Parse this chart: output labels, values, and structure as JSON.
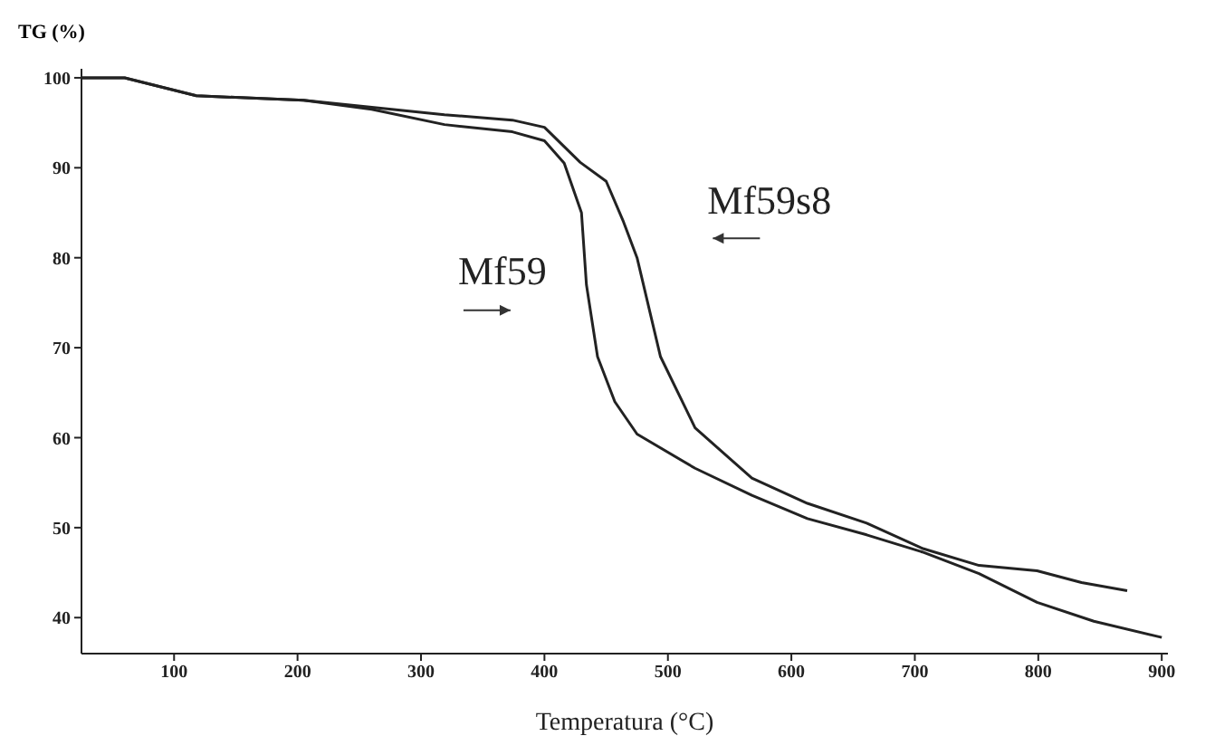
{
  "chart_data": {
    "type": "line",
    "xlabel": "Temperatura (°C)",
    "ylabel": "TG (%)",
    "xlim": [
      25,
      905
    ],
    "xticks": [
      100,
      200,
      300,
      400,
      500,
      600,
      700,
      800,
      900
    ],
    "ylim": [
      36,
      101
    ],
    "yticks": [
      40,
      50,
      60,
      70,
      80,
      90,
      100
    ],
    "grid": false,
    "legend": false,
    "marker": "none",
    "line_style": "solid",
    "series": [
      {
        "name": "Mf59",
        "color": "#222222",
        "x": [
          25,
          60,
          118,
          205,
          260,
          319,
          374,
          400,
          416,
          430,
          434,
          443,
          457,
          475,
          522,
          568,
          613,
          661,
          706,
          752,
          799,
          845,
          900
        ],
        "values": [
          100,
          100,
          98,
          97.5,
          96.5,
          94.8,
          94,
          93,
          90.5,
          85,
          77,
          69,
          64,
          60.4,
          56.6,
          53.6,
          51,
          49.2,
          47.3,
          44.9,
          41.7,
          39.6,
          37.8
        ]
      },
      {
        "name": "Mf59s8",
        "color": "#222222",
        "x": [
          25,
          60,
          118,
          205,
          319,
          374,
          400,
          429,
          450,
          464,
          475,
          494,
          522,
          568,
          613,
          661,
          706,
          752,
          799,
          835,
          872
        ],
        "values": [
          100,
          100,
          98,
          97.5,
          95.9,
          95.3,
          94.5,
          90.6,
          88.5,
          84,
          80,
          69,
          61.1,
          55.5,
          52.7,
          50.5,
          47.7,
          45.8,
          45.2,
          43.9,
          43
        ]
      }
    ]
  }
}
